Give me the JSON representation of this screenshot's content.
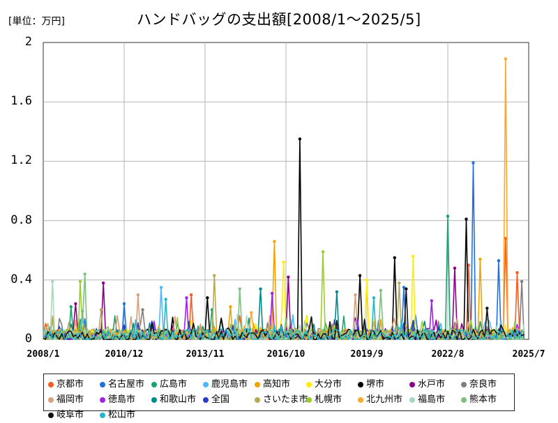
{
  "chart_data": {
    "type": "line",
    "title": "ハンドバッグの支出額[2008/1～2025/5]",
    "unit_label": "[単位：万円]",
    "xlabel": "",
    "ylabel": "",
    "ylim": [
      0,
      2
    ],
    "y_ticks": [
      "2",
      "1.6",
      "1.2",
      "0.8",
      "0.4",
      "0"
    ],
    "x_range": [
      "2008/1",
      "2025/7"
    ],
    "x_ticks": [
      "2008/1",
      "2010/12",
      "2013/11",
      "2016/10",
      "2019/9",
      "2022/8",
      "2025/7"
    ],
    "grid": true,
    "legend_position": "bottom",
    "series": [
      {
        "name": "京都市",
        "color": "#ff5a1f",
        "peaks": [
          [
            "2024/9",
            0.68
          ],
          [
            "2025/2",
            0.45
          ],
          [
            "2023/5",
            0.5
          ],
          [
            "2013/5",
            0.3
          ]
        ]
      },
      {
        "name": "名古屋市",
        "color": "#1f6fe0",
        "peaks": [
          [
            "2023/7",
            1.19
          ],
          [
            "2024/6",
            0.53
          ],
          [
            "2021/1",
            0.35
          ],
          [
            "2010/12",
            0.24
          ]
        ]
      },
      {
        "name": "広島市",
        "color": "#17a36b",
        "peaks": [
          [
            "2022/8",
            0.83
          ],
          [
            "2009/1",
            0.22
          ],
          [
            "2014/2",
            0.2
          ]
        ]
      },
      {
        "name": "鹿児島市",
        "color": "#4db8ff",
        "peaks": [
          [
            "2012/4",
            0.35
          ],
          [
            "2009/6",
            0.19
          ]
        ]
      },
      {
        "name": "高知市",
        "color": "#f0a300",
        "peaks": [
          [
            "2016/5",
            0.66
          ],
          [
            "2023/10",
            0.54
          ],
          [
            "2014/10",
            0.22
          ]
        ]
      },
      {
        "name": "大分市",
        "color": "#ffee00",
        "peaks": [
          [
            "2016/9",
            0.52
          ],
          [
            "2021/5",
            0.56
          ],
          [
            "2019/9",
            0.4
          ]
        ]
      },
      {
        "name": "堺市",
        "color": "#000000",
        "peaks": [
          [
            "2017/4",
            1.35
          ],
          [
            "2023/4",
            0.81
          ],
          [
            "2020/9",
            0.55
          ],
          [
            "2019/6",
            0.43
          ],
          [
            "2013/12",
            0.28
          ]
        ]
      },
      {
        "name": "水戸市",
        "color": "#8b008b",
        "peaks": [
          [
            "2010/3",
            0.38
          ],
          [
            "2016/11",
            0.42
          ],
          [
            "2022/11",
            0.48
          ],
          [
            "2009/3",
            0.24
          ]
        ]
      },
      {
        "name": "奈良市",
        "color": "#7f7f7f",
        "peaks": [
          [
            "2025/4",
            0.39
          ],
          [
            "2011/8",
            0.2
          ]
        ]
      },
      {
        "name": "福岡市",
        "color": "#d9a07a",
        "peaks": [
          [
            "2011/6",
            0.3
          ],
          [
            "2019/4",
            0.3
          ]
        ]
      },
      {
        "name": "徳島市",
        "color": "#a020f0",
        "peaks": [
          [
            "2013/3",
            0.28
          ],
          [
            "2016/4",
            0.31
          ],
          [
            "2022/1",
            0.26
          ]
        ]
      },
      {
        "name": "和歌山市",
        "color": "#008b8b",
        "peaks": [
          [
            "2015/11",
            0.34
          ],
          [
            "2018/8",
            0.32
          ]
        ]
      },
      {
        "name": "全国",
        "color": "#2a3cc7",
        "peaks": [
          [
            "2012/1",
            0.06
          ],
          [
            "2020/1",
            0.05
          ]
        ]
      },
      {
        "name": "さいたま市",
        "color": "#b5aa55",
        "peaks": [
          [
            "2014/3",
            0.43
          ],
          [
            "2020/11",
            0.38
          ],
          [
            "2010/2",
            0.2
          ]
        ]
      },
      {
        "name": "札幌市",
        "color": "#9acd32",
        "peaks": [
          [
            "2018/2",
            0.59
          ],
          [
            "2009/5",
            0.39
          ]
        ]
      },
      {
        "name": "北九州市",
        "color": "#ffa726",
        "peaks": [
          [
            "2024/9",
            1.89
          ],
          [
            "2015/7",
            0.18
          ]
        ]
      },
      {
        "name": "福島市",
        "color": "#a8d8b9",
        "peaks": [
          [
            "2008/5",
            0.39
          ],
          [
            "2017/9",
            0.14
          ]
        ]
      },
      {
        "name": "熊本市",
        "color": "#7fbf7f",
        "peaks": [
          [
            "2009/7",
            0.44
          ],
          [
            "2015/2",
            0.34
          ],
          [
            "2020/3",
            0.33
          ]
        ]
      },
      {
        "name": "岐阜市",
        "color": "#111111",
        "peaks": [
          [
            "2021/2",
            0.34
          ],
          [
            "2024/1",
            0.21
          ]
        ]
      },
      {
        "name": "松山市",
        "color": "#26b6c8",
        "peaks": [
          [
            "2012/6",
            0.27
          ],
          [
            "2019/12",
            0.28
          ]
        ]
      }
    ]
  }
}
